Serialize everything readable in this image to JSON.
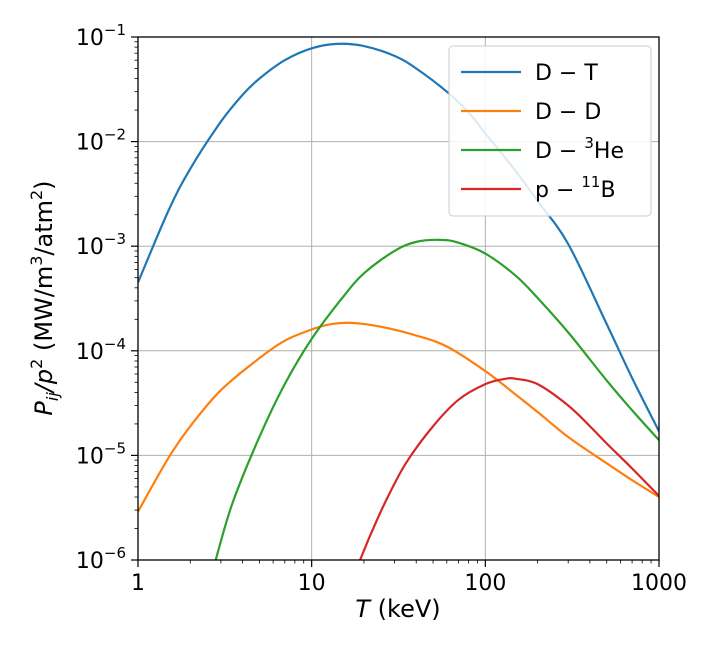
{
  "chart_data": {
    "type": "line",
    "x_scale": "log",
    "y_scale": "log",
    "xlim": [
      1,
      1000
    ],
    "ylim": [
      1e-06,
      0.1
    ],
    "grid": true,
    "legend_position": "top-right",
    "xlabel": {
      "var": "T",
      "rest": " (keV)"
    },
    "ylabel": {
      "var_main": "P",
      "var_sub": "ij",
      "var_div": "/p",
      "sup2": "2",
      "open": " (MW/m",
      "sup3": "3",
      "mid": "/atm",
      "sup2b": "2",
      "close": ")"
    },
    "x_ticks": [
      {
        "value": 1,
        "label": "1"
      },
      {
        "value": 10,
        "label": "10"
      },
      {
        "value": 100,
        "label": "100"
      },
      {
        "value": 1000,
        "label": "1000"
      }
    ],
    "y_ticks": [
      {
        "value": 1e-06,
        "base": "10",
        "exp": "−6"
      },
      {
        "value": 1e-05,
        "base": "10",
        "exp": "−5"
      },
      {
        "value": 0.0001,
        "base": "10",
        "exp": "−4"
      },
      {
        "value": 0.001,
        "base": "10",
        "exp": "−3"
      },
      {
        "value": 0.01,
        "base": "10",
        "exp": "−2"
      },
      {
        "value": 0.1,
        "base": "10",
        "exp": "−1"
      }
    ],
    "series": [
      {
        "name": "D − T",
        "legend": {
          "pre": "D − T",
          "sup": "",
          "post": ""
        },
        "color": "#1f77b4",
        "points": [
          [
            1,
            0.00045
          ],
          [
            1.5,
            0.0022
          ],
          [
            2,
            0.0055
          ],
          [
            3,
            0.0155
          ],
          [
            4,
            0.028
          ],
          [
            5,
            0.04
          ],
          [
            7,
            0.06
          ],
          [
            10,
            0.078
          ],
          [
            14,
            0.086
          ],
          [
            20,
            0.082
          ],
          [
            30,
            0.066
          ],
          [
            40,
            0.05
          ],
          [
            60,
            0.03
          ],
          [
            80,
            0.019
          ],
          [
            100,
            0.012
          ],
          [
            150,
            0.0052
          ],
          [
            200,
            0.0027
          ],
          [
            300,
            0.00105
          ],
          [
            500,
            0.00018
          ],
          [
            700,
            5.5e-05
          ],
          [
            1000,
            1.7e-05
          ]
        ]
      },
      {
        "name": "D − D",
        "legend": {
          "pre": "D − D",
          "sup": "",
          "post": ""
        },
        "color": "#ff7f0e",
        "points": [
          [
            1,
            2.9e-06
          ],
          [
            1.5,
            9.5e-06
          ],
          [
            2,
            1.9e-05
          ],
          [
            3,
            4.2e-05
          ],
          [
            5,
            8.5e-05
          ],
          [
            7,
            0.000125
          ],
          [
            10,
            0.00016
          ],
          [
            13,
            0.00018
          ],
          [
            17,
            0.000185
          ],
          [
            25,
            0.00017
          ],
          [
            40,
            0.00014
          ],
          [
            60,
            0.00011
          ],
          [
            100,
            6.4e-05
          ],
          [
            150,
            3.8e-05
          ],
          [
            200,
            2.6e-05
          ],
          [
            300,
            1.5e-05
          ],
          [
            500,
            8.4e-06
          ],
          [
            700,
            5.8e-06
          ],
          [
            1000,
            4e-06
          ]
        ]
      },
      {
        "name": "D − ³He",
        "legend": {
          "pre": "D − ",
          "sup": "3",
          "post": "He"
        },
        "color": "#2ca02c",
        "points": [
          [
            2.8,
            1e-06
          ],
          [
            3.5,
            3.5e-06
          ],
          [
            5,
            1.5e-05
          ],
          [
            7,
            4.8e-05
          ],
          [
            10,
            0.00013
          ],
          [
            15,
            0.00032
          ],
          [
            20,
            0.00055
          ],
          [
            30,
            0.0009
          ],
          [
            40,
            0.0011
          ],
          [
            55,
            0.00115
          ],
          [
            70,
            0.00108
          ],
          [
            100,
            0.00085
          ],
          [
            150,
            0.00052
          ],
          [
            200,
            0.00032
          ],
          [
            300,
            0.00015
          ],
          [
            500,
            5.2e-05
          ],
          [
            700,
            2.7e-05
          ],
          [
            1000,
            1.4e-05
          ]
        ]
      },
      {
        "name": "p − ¹¹B",
        "legend": {
          "pre": "p − ",
          "sup": "11",
          "post": "B"
        },
        "color": "#d62728",
        "points": [
          [
            19,
            1e-06
          ],
          [
            22,
            1.8e-06
          ],
          [
            27,
            3.8e-06
          ],
          [
            35,
            8.5e-06
          ],
          [
            50,
            1.9e-05
          ],
          [
            70,
            3.4e-05
          ],
          [
            100,
            4.8e-05
          ],
          [
            130,
            5.4e-05
          ],
          [
            150,
            5.4e-05
          ],
          [
            200,
            4.8e-05
          ],
          [
            300,
            3e-05
          ],
          [
            400,
            1.9e-05
          ],
          [
            500,
            1.3e-05
          ],
          [
            700,
            7.5e-06
          ],
          [
            1000,
            4.1e-06
          ]
        ]
      }
    ]
  }
}
